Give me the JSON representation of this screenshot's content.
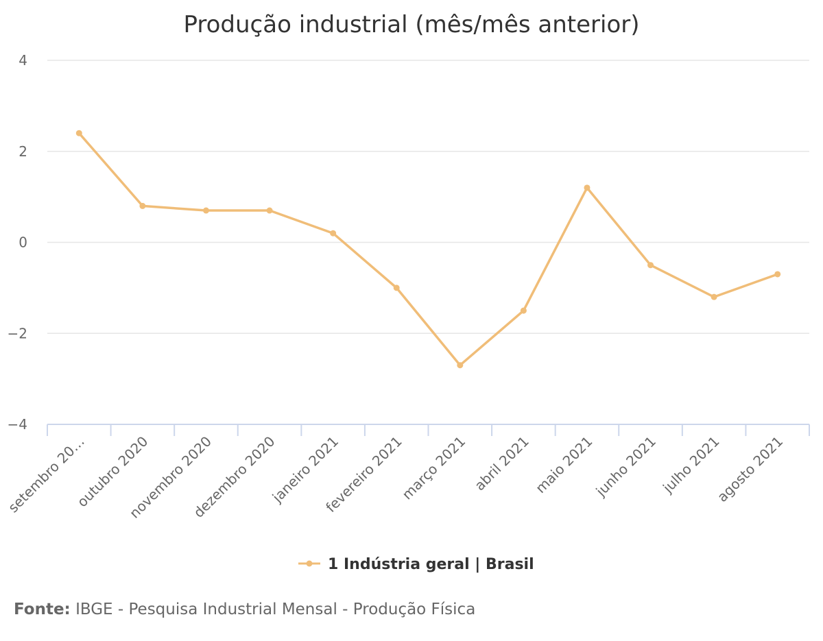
{
  "chart_data": {
    "type": "line",
    "title": "Produção industrial (mês/mês anterior)",
    "categories": [
      "setembro 20…",
      "outubro 2020",
      "novembro 2020",
      "dezembro 2020",
      "janeiro 2021",
      "fevereiro 2021",
      "março 2021",
      "abril 2021",
      "maio 2021",
      "junho 2021",
      "julho 2021",
      "agosto 2021"
    ],
    "series": [
      {
        "name": "1 Indústria geral | Brasil",
        "values": [
          2.4,
          0.8,
          0.7,
          0.7,
          0.2,
          -1.0,
          -2.7,
          -1.5,
          1.2,
          -0.5,
          -1.2,
          -0.7
        ],
        "color": "#f0bd78"
      }
    ],
    "yticks": [
      "4",
      "2",
      "0",
      "−2",
      "−4"
    ],
    "ylim": [
      -4,
      4
    ],
    "grid": true,
    "legend_position": "bottom-center",
    "xlabel": "",
    "ylabel": ""
  },
  "source": {
    "label": "Fonte:",
    "text": "IBGE - Pesquisa Industrial Mensal - Produção Física"
  }
}
